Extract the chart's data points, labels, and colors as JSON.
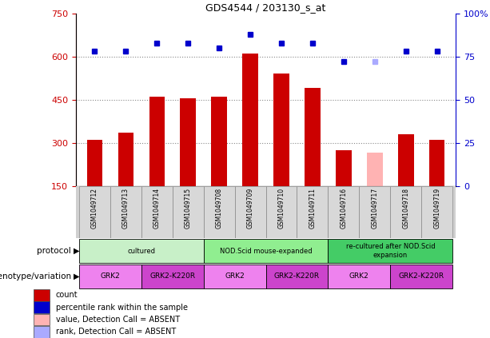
{
  "title": "GDS4544 / 203130_s_at",
  "samples": [
    "GSM1049712",
    "GSM1049713",
    "GSM1049714",
    "GSM1049715",
    "GSM1049708",
    "GSM1049709",
    "GSM1049710",
    "GSM1049711",
    "GSM1049716",
    "GSM1049717",
    "GSM1049718",
    "GSM1049719"
  ],
  "counts": [
    310,
    335,
    460,
    455,
    460,
    610,
    540,
    490,
    275,
    265,
    330,
    310
  ],
  "percentile_ranks": [
    78,
    78,
    83,
    83,
    80,
    88,
    83,
    83,
    72,
    72,
    78,
    78
  ],
  "absent_count_idx": [
    9
  ],
  "absent_rank_idx": [
    9
  ],
  "protocol_groups": [
    {
      "label": "cultured",
      "start": 0,
      "end": 3,
      "color": "#c8f0c8"
    },
    {
      "label": "NOD.Scid mouse-expanded",
      "start": 4,
      "end": 7,
      "color": "#90ee90"
    },
    {
      "label": "re-cultured after NOD.Scid\nexpansion",
      "start": 8,
      "end": 11,
      "color": "#44cc66"
    }
  ],
  "genotype_groups": [
    {
      "label": "GRK2",
      "start": 0,
      "end": 1,
      "color": "#ee82ee"
    },
    {
      "label": "GRK2-K220R",
      "start": 2,
      "end": 3,
      "color": "#cc44cc"
    },
    {
      "label": "GRK2",
      "start": 4,
      "end": 5,
      "color": "#ee82ee"
    },
    {
      "label": "GRK2-K220R",
      "start": 6,
      "end": 7,
      "color": "#cc44cc"
    },
    {
      "label": "GRK2",
      "start": 8,
      "end": 9,
      "color": "#ee82ee"
    },
    {
      "label": "GRK2-K220R",
      "start": 10,
      "end": 11,
      "color": "#cc44cc"
    }
  ],
  "ylim_left": [
    150,
    750
  ],
  "yticks_left": [
    150,
    300,
    450,
    600,
    750
  ],
  "ylim_right": [
    0,
    100
  ],
  "yticks_right": [
    0,
    25,
    50,
    75,
    100
  ],
  "bar_color": "#cc0000",
  "absent_bar_color": "#ffb3b3",
  "dot_color": "#0000cc",
  "absent_dot_color": "#aaaaff",
  "grid_color": "#888888",
  "left_axis_color": "#cc0000",
  "right_axis_color": "#0000cc",
  "legend_items": [
    {
      "color": "#cc0000",
      "label": "count"
    },
    {
      "color": "#0000cc",
      "label": "percentile rank within the sample"
    },
    {
      "color": "#ffb3b3",
      "label": "value, Detection Call = ABSENT"
    },
    {
      "color": "#aaaaff",
      "label": "rank, Detection Call = ABSENT"
    }
  ]
}
